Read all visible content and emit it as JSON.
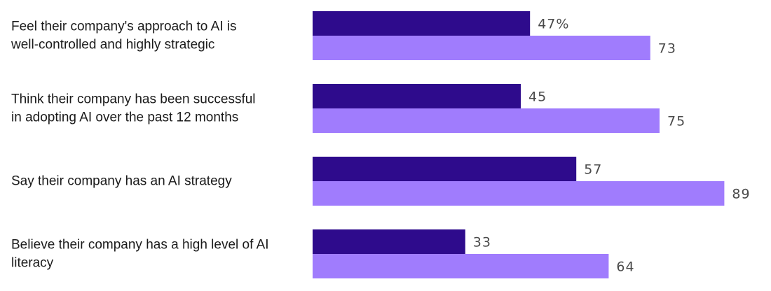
{
  "chart_data": {
    "type": "bar",
    "orientation": "horizontal",
    "categories": [
      [
        "Feel their company's approach to AI is",
        "well-controlled and highly strategic"
      ],
      [
        "Think their company has been successful",
        "in adopting AI over the past 12 months"
      ],
      [
        "Say their company has an AI strategy"
      ],
      [
        "Believe their company has a high level of AI",
        "literacy"
      ]
    ],
    "series": [
      {
        "color": "#2e0b8c",
        "values": [
          47,
          45,
          57,
          33
        ],
        "labels": [
          "47%",
          "45",
          "57",
          "33"
        ]
      },
      {
        "color": "#a07cfd",
        "values": [
          73,
          75,
          89,
          64
        ],
        "labels": [
          "73",
          "75",
          "89",
          "64"
        ]
      }
    ],
    "xlim": [
      0,
      100
    ],
    "grid": false,
    "legend": "none"
  }
}
